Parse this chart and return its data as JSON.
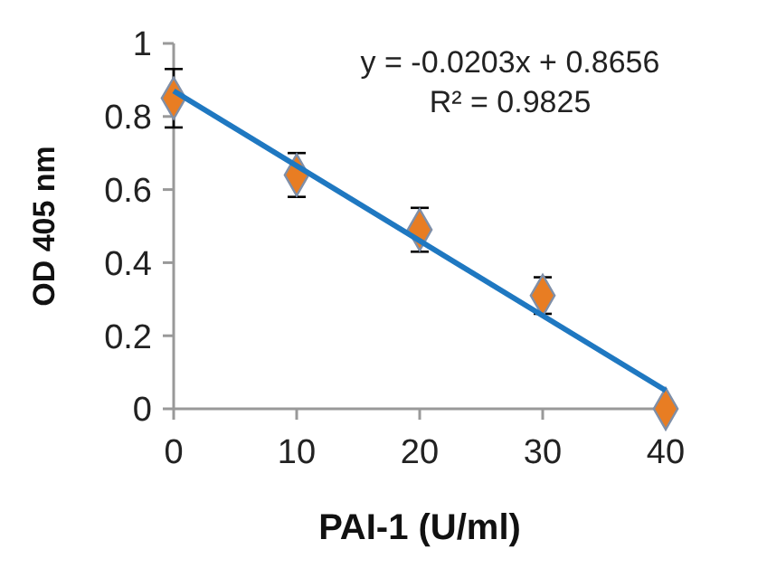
{
  "chart_data": {
    "type": "scatter",
    "xlabel": "PAI-1 (U/ml)",
    "ylabel": "OD 405 nm",
    "annotations": [
      "y = -0.0203x + 0.8656",
      "R² = 0.9825"
    ],
    "x": [
      0,
      10,
      20,
      30,
      40
    ],
    "series": [
      {
        "color": "#e87d23",
        "values": [
          0.85,
          0.64,
          0.49,
          0.31,
          0
        ],
        "errors": [
          0.08,
          0.06,
          0.06,
          0.05,
          null
        ],
        "marker": "diamond"
      },
      {
        "type": "line",
        "color": "#1f78c1",
        "x": [
          0,
          40
        ],
        "values": [
          0.87,
          0.05
        ],
        "marker": "none",
        "line_style": "solid"
      }
    ],
    "xlim": [
      0,
      40
    ],
    "xticks": [
      0,
      10,
      20,
      30,
      40
    ],
    "ylim": [
      0,
      1
    ],
    "yticks": [
      0,
      0.2,
      0.4,
      0.6,
      0.8,
      1
    ],
    "grid": false
  }
}
